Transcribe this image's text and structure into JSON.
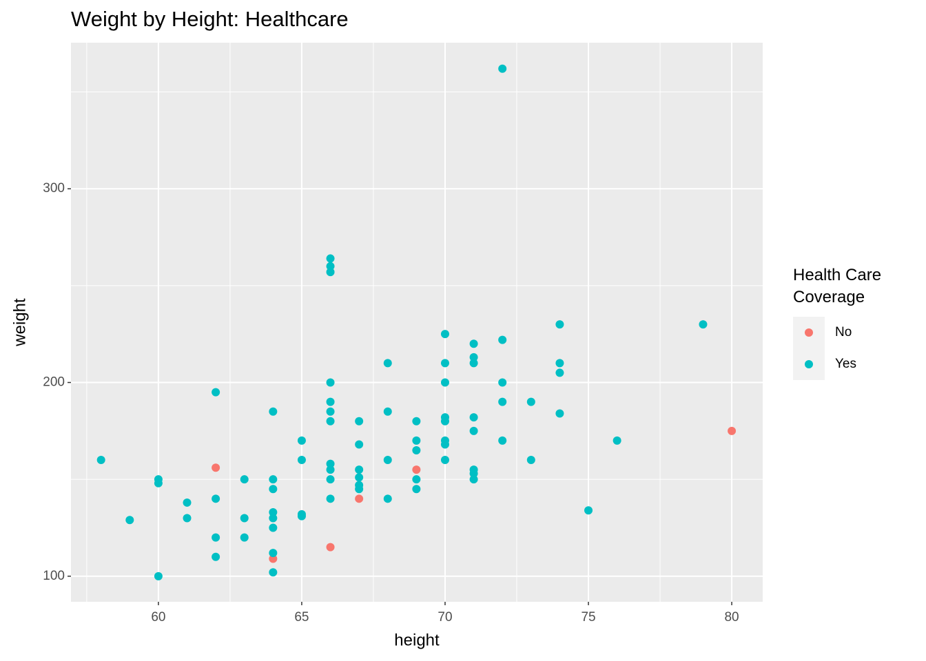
{
  "chart_data": {
    "type": "scatter",
    "title": "Weight by Height: Healthcare",
    "x_label": "height",
    "y_label": "weight",
    "legend_title": "Health Care\nCoverage",
    "xlim": [
      56.95,
      81.08
    ],
    "ylim": [
      86.8,
      375.4
    ],
    "xticks": [
      60,
      65,
      70,
      75,
      80
    ],
    "yticks": [
      100,
      200,
      300
    ],
    "xminor": [
      57.5,
      62.5,
      67.5,
      72.5,
      77.5
    ],
    "yminor": [
      150,
      250,
      350
    ],
    "grid": true,
    "legend": "right",
    "series": [
      {
        "name": "No",
        "color": "#F8766D",
        "x": [
          62,
          64,
          66,
          67,
          69,
          80
        ],
        "values": [
          156,
          109,
          115,
          140,
          155,
          175
        ]
      },
      {
        "name": "Yes",
        "color": "#00BFC4",
        "x": [
          58,
          59,
          60,
          60,
          60,
          61,
          61,
          62,
          62,
          62,
          62,
          63,
          63,
          63,
          64,
          64,
          64,
          64,
          64,
          64,
          64,
          64,
          65,
          65,
          65,
          65,
          66,
          66,
          66,
          66,
          66,
          66,
          66,
          66,
          66,
          66,
          66,
          67,
          67,
          67,
          67,
          67,
          67,
          68,
          68,
          68,
          68,
          69,
          69,
          69,
          69,
          69,
          70,
          70,
          70,
          70,
          70,
          70,
          70,
          70,
          71,
          71,
          71,
          71,
          71,
          71,
          71,
          71,
          72,
          72,
          72,
          72,
          72,
          73,
          73,
          74,
          74,
          74,
          74,
          75,
          76,
          79
        ],
        "values": [
          160,
          129,
          150,
          148,
          100,
          138,
          130,
          195,
          140,
          120,
          110,
          150,
          130,
          120,
          185,
          150,
          145,
          133,
          130,
          125,
          112,
          102,
          170,
          160,
          132,
          131,
          264,
          260,
          257,
          200,
          190,
          185,
          180,
          158,
          155,
          150,
          140,
          180,
          168,
          155,
          151,
          147,
          145,
          210,
          185,
          160,
          140,
          180,
          170,
          165,
          150,
          145,
          225,
          210,
          200,
          182,
          180,
          170,
          168,
          160,
          220,
          213,
          210,
          182,
          175,
          155,
          153,
          150,
          362,
          222,
          200,
          190,
          170,
          190,
          160,
          230,
          210,
          205,
          184,
          134,
          170,
          230
        ]
      }
    ]
  }
}
